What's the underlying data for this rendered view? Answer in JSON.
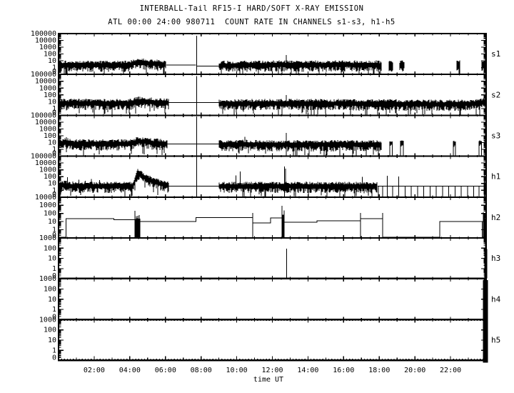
{
  "window": {
    "background": "#ffffff",
    "foreground": "#000000"
  },
  "chart_data": {
    "type": "line",
    "title": "INTERBALL-Tail RF15-I HARD/SOFT X-RAY EMISSION",
    "subtitle": "ATL 00:00 24:00 980711  COUNT RATE IN CHANNELS s1-s3, h1-h5",
    "xlabel": "time UT",
    "scale": "log",
    "grid": false,
    "x_range_hours": [
      0,
      24
    ],
    "x_major_ticks": [
      2,
      4,
      6,
      8,
      10,
      12,
      14,
      16,
      18,
      20,
      22
    ],
    "x_tick_labels": [
      "02:00",
      "04:00",
      "06:00",
      "08:00",
      "10:00",
      "12:00",
      "14:00",
      "16:00",
      "18:00",
      "20:00",
      "22:00"
    ],
    "panels": [
      {
        "name": "s1",
        "label": "s1",
        "ymax": 100000,
        "ymin": 0.1,
        "ytick_labels": [
          "100000",
          "10000",
          "1000",
          "100",
          "10",
          "1",
          "0"
        ],
        "trace": {
          "seed": 101,
          "noise": [
            [
              0,
              6.05
            ],
            [
              9.0,
              18.15
            ],
            [
              18.55,
              18.78
            ],
            [
              19.15,
              19.42
            ],
            [
              22.35,
              22.52
            ],
            [
              23.72,
              24
            ]
          ],
          "flat": [
            [
              6.05,
              7.72,
              2.4
            ],
            [
              7.78,
              9.0,
              1.6
            ]
          ],
          "envelope": [
            [
              0,
              3
            ],
            [
              4.0,
              3
            ],
            [
              4.35,
              7
            ],
            [
              5.3,
              4.5
            ],
            [
              6.05,
              3
            ],
            [
              9.0,
              2.6
            ],
            [
              12,
              3
            ],
            [
              18.15,
              3
            ],
            [
              23.7,
              3.5
            ],
            [
              24,
              5
            ]
          ],
          "spikes": [
            [
              7.75,
              50000,
              1
            ],
            [
              12.78,
              70,
              0
            ],
            [
              23.95,
              1200,
              1
            ]
          ]
        }
      },
      {
        "name": "s2",
        "label": "s2",
        "ymax": 100000,
        "ymin": 0.1,
        "ytick_labels": [
          "100000",
          "10000",
          "1000",
          "100",
          "10",
          "1",
          "0"
        ],
        "trace": {
          "seed": 102,
          "noise": [
            [
              0,
              6.2
            ],
            [
              9.0,
              24
            ]
          ],
          "flat": [
            [
              6.2,
              9.0,
              8
            ]
          ],
          "envelope": [
            [
              0,
              7
            ],
            [
              4.1,
              7
            ],
            [
              4.4,
              16
            ],
            [
              5.5,
              9
            ],
            [
              6.2,
              8
            ],
            [
              9,
              6
            ],
            [
              12,
              7
            ],
            [
              18,
              6
            ],
            [
              21,
              5
            ],
            [
              23.5,
              6
            ],
            [
              23.9,
              10
            ],
            [
              24,
              12
            ]
          ],
          "spikes": [
            [
              7.75,
              60000,
              1
            ],
            [
              12.78,
              100,
              0
            ],
            [
              23.97,
              2000,
              1
            ]
          ]
        }
      },
      {
        "name": "s3",
        "label": "s3",
        "ymax": 100000,
        "ymin": 0.1,
        "ytick_labels": [
          "100000",
          "10000",
          "1000",
          "100",
          "10",
          "1",
          "0"
        ],
        "trace": {
          "seed": 103,
          "noise": [
            [
              0,
              6.1
            ],
            [
              9.0,
              18.15
            ],
            [
              23.9,
              24
            ]
          ],
          "flat": [
            [
              6.1,
              9.0,
              6
            ]
          ],
          "envelope": [
            [
              0,
              8
            ],
            [
              0.5,
              13
            ],
            [
              0.75,
              8
            ],
            [
              4.1,
              8
            ],
            [
              4.4,
              20
            ],
            [
              5.3,
              11
            ],
            [
              6.1,
              8
            ],
            [
              9,
              6
            ],
            [
              10.4,
              7
            ],
            [
              12,
              6
            ],
            [
              18.15,
              6
            ],
            [
              23.9,
              7
            ],
            [
              24,
              9
            ]
          ],
          "spikes": [
            [
              0.45,
              60,
              0
            ],
            [
              7.75,
              70000,
              1
            ],
            [
              10.45,
              70,
              0
            ],
            [
              12.78,
              250,
              1
            ],
            [
              23.95,
              2000,
              1
            ]
          ],
          "pulses": [
            [
              18.6,
              18.73,
              8
            ],
            [
              19.2,
              19.35,
              10
            ],
            [
              22.15,
              22.28,
              8
            ],
            [
              23.6,
              23.73,
              9
            ]
          ]
        }
      },
      {
        "name": "h1",
        "label": "h1",
        "ymax": 100000,
        "ymin": 0.1,
        "ytick_labels": [
          "100000",
          "10000",
          "1000",
          "100",
          "10",
          "1",
          "0"
        ],
        "trace": {
          "seed": 104,
          "noise": [
            [
              0,
              6.2
            ],
            [
              9.0,
              17.9
            ],
            [
              23.85,
              24
            ]
          ],
          "flat": [
            [
              6.2,
              9.0,
              4
            ],
            [
              17.9,
              23.85,
              4
            ]
          ],
          "envelope": [
            [
              0,
              5
            ],
            [
              0.45,
              7
            ],
            [
              0.6,
              5
            ],
            [
              4.2,
              5
            ],
            [
              4.32,
              90
            ],
            [
              4.45,
              400
            ],
            [
              4.7,
              150
            ],
            [
              5.1,
              40
            ],
            [
              5.7,
              11
            ],
            [
              6.2,
              5
            ],
            [
              9,
              4.5
            ],
            [
              12,
              5
            ],
            [
              17.9,
              4.5
            ],
            [
              23.85,
              5
            ],
            [
              24,
              9
            ]
          ],
          "spikes": [
            [
              0.5,
              80,
              0
            ],
            [
              1.15,
              35,
              0
            ],
            [
              1.5,
              25,
              0
            ],
            [
              1.85,
              45,
              0
            ],
            [
              2.3,
              30,
              0
            ],
            [
              7.75,
              80000,
              1
            ],
            [
              9.95,
              150,
              0
            ],
            [
              10.2,
              600,
              0
            ],
            [
              12.68,
              3000,
              1
            ],
            [
              12.74,
              1500,
              0
            ],
            [
              17.05,
              90,
              0
            ],
            [
              18.45,
              130,
              1
            ],
            [
              19.1,
              110,
              1
            ],
            [
              23.9,
              300,
              1
            ]
          ],
          "drops": [
            17.95,
            18.2,
            18.75,
            19.45,
            19.8,
            20.15,
            20.5,
            20.85,
            21.2,
            21.55,
            21.9,
            22.25,
            22.6,
            22.95,
            23.3,
            23.6
          ]
        }
      },
      {
        "name": "h2",
        "label": "h2",
        "ymax": 10000,
        "ymin": 0.1,
        "ytick_labels": [
          "10000",
          "1000",
          "100",
          "10",
          "1",
          "0"
        ],
        "trace": {
          "seed": 105,
          "steps": [
            [
              0,
              0.12
            ],
            [
              0.42,
              24
            ],
            [
              3.1,
              17
            ],
            [
              4.4,
              10
            ],
            [
              7.72,
              30
            ],
            [
              10.9,
              7
            ],
            [
              11.9,
              27
            ],
            [
              12.62,
              8
            ],
            [
              14.5,
              13
            ],
            [
              16.95,
              22
            ],
            [
              18.2,
              0.12
            ],
            [
              21.4,
              10
            ],
            [
              23.78,
              0.12
            ]
          ],
          "spikes": [
            [
              10.9,
              110,
              1
            ],
            [
              12.55,
              900,
              1
            ],
            [
              16.95,
              120,
              1
            ],
            [
              18.2,
              115,
              1
            ]
          ],
          "bursts": [
            [
              4.25,
              4.58,
              220
            ],
            [
              12.55,
              12.68,
              700
            ],
            [
              23.8,
              24.02,
              150
            ]
          ]
        }
      },
      {
        "name": "h3",
        "label": "h3",
        "ymax": 1000,
        "ymin": 0.1,
        "ytick_labels": [
          "1000",
          "100",
          "10",
          "1",
          "0"
        ],
        "trace": {
          "seed": 106,
          "flat": [
            [
              0,
              24,
              0.12
            ]
          ],
          "spikes": [
            [
              12.8,
              90,
              1
            ]
          ],
          "bursts": [
            [
              23.88,
              24.05,
              600
            ]
          ]
        }
      },
      {
        "name": "h4",
        "label": "h4",
        "ymax": 1000,
        "ymin": 0.1,
        "ytick_labels": [
          "1000",
          "100",
          "10",
          "1",
          "0"
        ],
        "trace": {
          "seed": 107,
          "flat": [
            [
              0,
              24,
              0.12
            ]
          ],
          "bar": [
            23.82,
            24.1
          ]
        }
      },
      {
        "name": "h5",
        "label": "h5",
        "ymax": 1000,
        "ymin": 0.1,
        "ytick_labels": [
          "1000",
          "100",
          "10",
          "1",
          "0"
        ],
        "trace": {
          "seed": 108,
          "flat": [
            [
              0,
              24,
              0.12
            ]
          ],
          "bar": [
            23.82,
            24.1
          ]
        }
      }
    ]
  }
}
